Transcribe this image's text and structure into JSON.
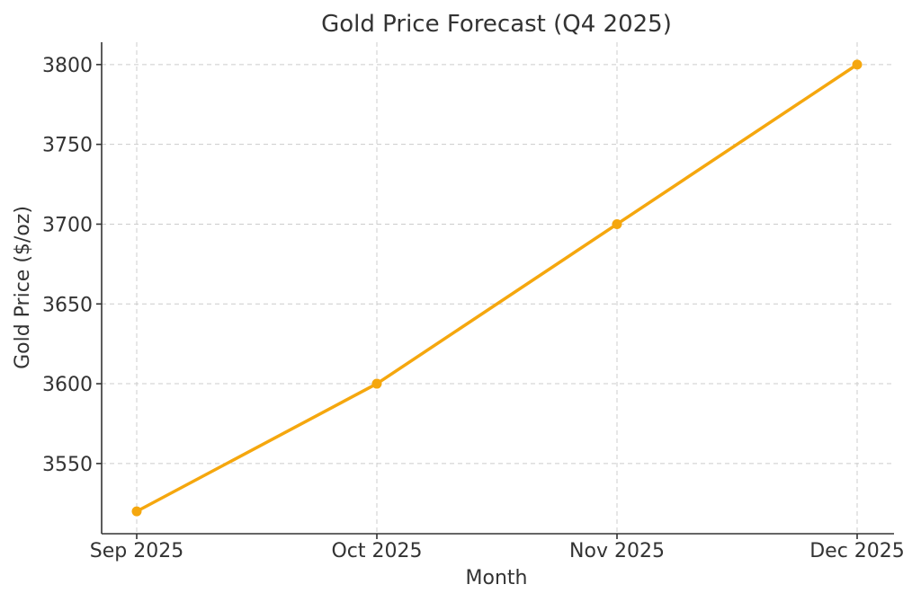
{
  "chart_data": {
    "type": "line",
    "title": "Gold Price Forecast (Q4 2025)",
    "xlabel": "Month",
    "ylabel": "Gold Price ($/oz)",
    "categories": [
      "Sep 2025",
      "Oct 2025",
      "Nov 2025",
      "Dec 2025"
    ],
    "series": [
      {
        "values": [
          3520,
          3600,
          3700,
          3800
        ],
        "color": "#F5A70E"
      }
    ],
    "yticks": [
      3550,
      3600,
      3650,
      3700,
      3750,
      3800
    ],
    "ylim": [
      3506,
      3814
    ],
    "grid": true
  }
}
